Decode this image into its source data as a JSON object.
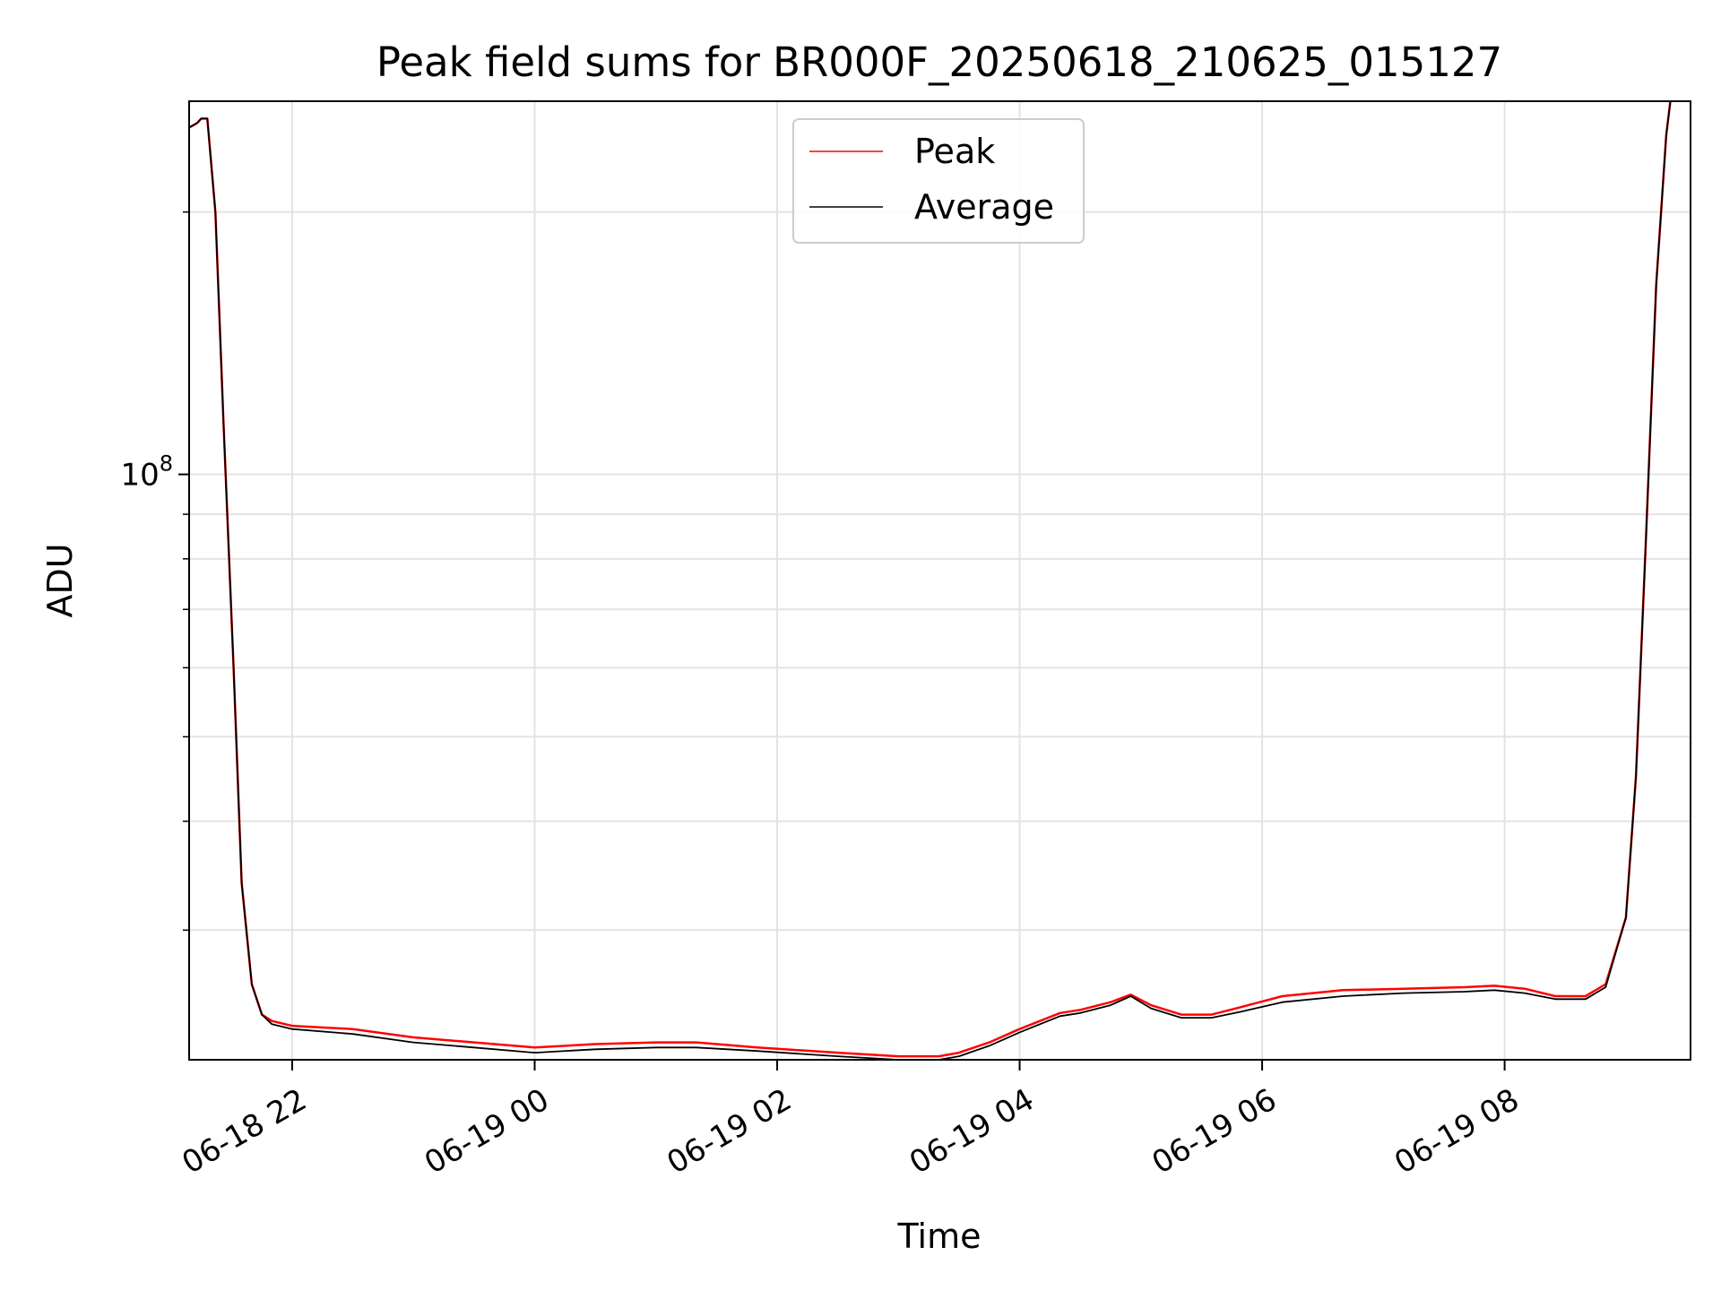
{
  "chart_data": {
    "type": "line",
    "title": "Peak field sums for BR000F_20250618_210625_015127",
    "xlabel": "Time",
    "ylabel": "ADU",
    "yscale": "log",
    "grid": true,
    "legend_position": "upper center",
    "ylim": [
      21300000,
      268000000
    ],
    "xlim": [
      "2025-06-18T21:09",
      "2025-06-19T09:32"
    ],
    "x_ticks": [
      {
        "label": "06-18 22",
        "value": "2025-06-18T22:00"
      },
      {
        "label": "06-19 00",
        "value": "2025-06-19T00:00"
      },
      {
        "label": "06-19 02",
        "value": "2025-06-19T02:00"
      },
      {
        "label": "06-19 04",
        "value": "2025-06-19T04:00"
      },
      {
        "label": "06-19 06",
        "value": "2025-06-19T06:00"
      },
      {
        "label": "06-19 08",
        "value": "2025-06-19T08:00"
      }
    ],
    "y_major_ticks": [
      {
        "label_base": "10",
        "label_exp": "8",
        "value": 100000000
      }
    ],
    "y_minor_tick_values": [
      30000000,
      40000000,
      50000000,
      60000000,
      70000000,
      80000000,
      90000000,
      200000000
    ],
    "series": [
      {
        "name": "Peak",
        "color": "#ff0000",
        "x": [
          "2025-06-18T21:09",
          "2025-06-18T21:13",
          "2025-06-18T21:15",
          "2025-06-18T21:18",
          "2025-06-18T21:22",
          "2025-06-18T21:26",
          "2025-06-18T21:31",
          "2025-06-18T21:35",
          "2025-06-18T21:40",
          "2025-06-18T21:45",
          "2025-06-18T21:50",
          "2025-06-18T22:00",
          "2025-06-18T22:30",
          "2025-06-18T23:00",
          "2025-06-18T23:30",
          "2025-06-19T00:00",
          "2025-06-19T00:30",
          "2025-06-19T01:00",
          "2025-06-19T01:20",
          "2025-06-19T01:50",
          "2025-06-19T02:30",
          "2025-06-19T03:00",
          "2025-06-19T03:20",
          "2025-06-19T03:30",
          "2025-06-19T03:45",
          "2025-06-19T04:00",
          "2025-06-19T04:20",
          "2025-06-19T04:30",
          "2025-06-19T04:45",
          "2025-06-19T04:55",
          "2025-06-19T05:05",
          "2025-06-19T05:20",
          "2025-06-19T05:35",
          "2025-06-19T05:50",
          "2025-06-19T06:10",
          "2025-06-19T06:40",
          "2025-06-19T07:10",
          "2025-06-19T07:40",
          "2025-06-19T07:55",
          "2025-06-19T08:10",
          "2025-06-19T08:25",
          "2025-06-19T08:40",
          "2025-06-19T08:50",
          "2025-06-19T09:00",
          "2025-06-19T09:05",
          "2025-06-19T09:10",
          "2025-06-19T09:15",
          "2025-06-19T09:20",
          "2025-06-19T09:22"
        ],
        "values": [
          250000000,
          253000000,
          256000000,
          256000000,
          200000000,
          115000000,
          60000000,
          34000000,
          26000000,
          24000000,
          23600000,
          23300000,
          23100000,
          22600000,
          22300000,
          22000000,
          22200000,
          22300000,
          22300000,
          22000000,
          21700000,
          21500000,
          21500000,
          21700000,
          22300000,
          23100000,
          24100000,
          24300000,
          24800000,
          25300000,
          24600000,
          24000000,
          24000000,
          24500000,
          25200000,
          25600000,
          25700000,
          25800000,
          25900000,
          25700000,
          25200000,
          25200000,
          26000000,
          31000000,
          45000000,
          85000000,
          165000000,
          245000000,
          268000000
        ]
      },
      {
        "name": "Average",
        "color": "#000000",
        "x": [
          "2025-06-18T21:09",
          "2025-06-18T21:13",
          "2025-06-18T21:15",
          "2025-06-18T21:18",
          "2025-06-18T21:22",
          "2025-06-18T21:26",
          "2025-06-18T21:31",
          "2025-06-18T21:35",
          "2025-06-18T21:40",
          "2025-06-18T21:45",
          "2025-06-18T21:50",
          "2025-06-18T22:00",
          "2025-06-18T22:30",
          "2025-06-18T23:00",
          "2025-06-18T23:30",
          "2025-06-19T00:00",
          "2025-06-19T00:30",
          "2025-06-19T01:00",
          "2025-06-19T01:20",
          "2025-06-19T01:50",
          "2025-06-19T02:30",
          "2025-06-19T03:00",
          "2025-06-19T03:20",
          "2025-06-19T03:30",
          "2025-06-19T03:45",
          "2025-06-19T04:00",
          "2025-06-19T04:20",
          "2025-06-19T04:30",
          "2025-06-19T04:45",
          "2025-06-19T04:55",
          "2025-06-19T05:05",
          "2025-06-19T05:20",
          "2025-06-19T05:35",
          "2025-06-19T05:50",
          "2025-06-19T06:10",
          "2025-06-19T06:40",
          "2025-06-19T07:10",
          "2025-06-19T07:40",
          "2025-06-19T07:55",
          "2025-06-19T08:10",
          "2025-06-19T08:25",
          "2025-06-19T08:40",
          "2025-06-19T08:50",
          "2025-06-19T09:00",
          "2025-06-19T09:05",
          "2025-06-19T09:10",
          "2025-06-19T09:15",
          "2025-06-19T09:20",
          "2025-06-19T09:22"
        ],
        "values": [
          250000000,
          253000000,
          256000000,
          256000000,
          200000000,
          115000000,
          60000000,
          34000000,
          26000000,
          24000000,
          23400000,
          23100000,
          22800000,
          22300000,
          22000000,
          21700000,
          21900000,
          22000000,
          22000000,
          21800000,
          21500000,
          21300000,
          21300000,
          21500000,
          22100000,
          22900000,
          23900000,
          24100000,
          24600000,
          25200000,
          24400000,
          23800000,
          23800000,
          24200000,
          24800000,
          25200000,
          25400000,
          25500000,
          25600000,
          25400000,
          25000000,
          25000000,
          25800000,
          31000000,
          45000000,
          85000000,
          165000000,
          245000000,
          268000000
        ]
      }
    ]
  }
}
